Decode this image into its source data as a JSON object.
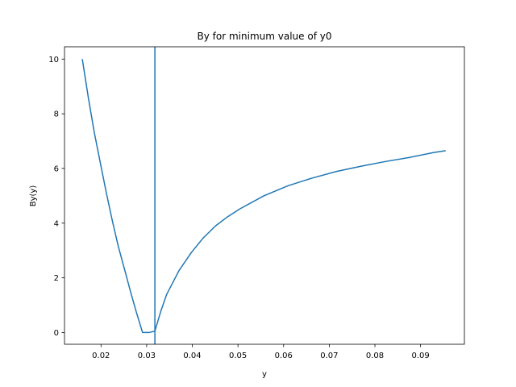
{
  "chart_data": {
    "type": "line",
    "title": "By for minimum value of y0",
    "xlabel": "y",
    "ylabel": "By(y)",
    "xlim": [
      0.012,
      0.0996
    ],
    "ylim": [
      -0.43,
      10.45
    ],
    "xticks": [
      0.02,
      0.03,
      0.04,
      0.05,
      0.06,
      0.07,
      0.08,
      0.09
    ],
    "xtick_labels": [
      "0.02",
      "0.03",
      "0.04",
      "0.05",
      "0.06",
      "0.07",
      "0.08",
      "0.09"
    ],
    "yticks": [
      0,
      2,
      4,
      6,
      8,
      10
    ],
    "ytick_labels": [
      "0",
      "2",
      "4",
      "6",
      "8",
      "10"
    ],
    "grid": false,
    "color": "#1f77b4",
    "series": [
      {
        "x": [
          0.0159,
          0.0172,
          0.0185,
          0.0199,
          0.0212,
          0.0225,
          0.0238,
          0.0252,
          0.0265,
          0.0278,
          0.0291,
          0.0305,
          0.0318,
          0.0331,
          0.0344,
          0.0371,
          0.0398,
          0.0424,
          0.0451,
          0.0477,
          0.0504,
          0.0557,
          0.061,
          0.0663,
          0.0716,
          0.0769,
          0.0822,
          0.0875,
          0.0928,
          0.0955
        ],
        "y": [
          10.0,
          8.61,
          7.34,
          6.16,
          5.08,
          4.07,
          3.14,
          2.28,
          1.47,
          0.71,
          0.0,
          0.0,
          0.05,
          0.78,
          1.4,
          2.27,
          2.93,
          3.46,
          3.9,
          4.23,
          4.52,
          5.0,
          5.37,
          5.65,
          5.89,
          6.08,
          6.25,
          6.4,
          6.58,
          6.65
        ]
      },
      {
        "x": [
          0.0318,
          0.0318
        ],
        "y": [
          -0.43,
          10.45
        ]
      }
    ]
  }
}
